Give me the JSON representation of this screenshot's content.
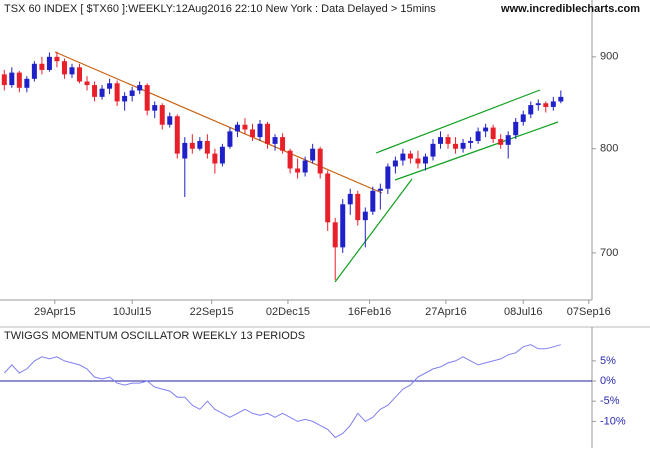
{
  "chart_data": [
    {
      "type": "candlestick",
      "title": "TSX 60 INDEX [ $TX60 ]:WEEKLY:12Aug2016 22:10 New York : Data Delayed > 15mins",
      "source": "www.incrediblecharts.com",
      "x": [
        "2015-03-13",
        "2015-03-20",
        "2015-03-27",
        "2015-04-03",
        "2015-04-10",
        "2015-04-17",
        "2015-04-24",
        "2015-05-01",
        "2015-05-08",
        "2015-05-15",
        "2015-05-22",
        "2015-05-29",
        "2015-06-05",
        "2015-06-12",
        "2015-06-19",
        "2015-06-26",
        "2015-07-03",
        "2015-07-10",
        "2015-07-17",
        "2015-07-24",
        "2015-07-31",
        "2015-08-07",
        "2015-08-14",
        "2015-08-21",
        "2015-08-28",
        "2015-09-04",
        "2015-09-11",
        "2015-09-18",
        "2015-09-25",
        "2015-10-02",
        "2015-10-09",
        "2015-10-16",
        "2015-10-23",
        "2015-10-30",
        "2015-11-06",
        "2015-11-13",
        "2015-11-20",
        "2015-11-27",
        "2015-12-04",
        "2015-12-11",
        "2015-12-18",
        "2015-12-25",
        "2016-01-01",
        "2016-01-08",
        "2016-01-15",
        "2016-01-22",
        "2016-01-29",
        "2016-02-05",
        "2016-02-12",
        "2016-02-19",
        "2016-02-26",
        "2016-03-04",
        "2016-03-11",
        "2016-03-18",
        "2016-03-25",
        "2016-04-01",
        "2016-04-08",
        "2016-04-15",
        "2016-04-22",
        "2016-04-29",
        "2016-05-06",
        "2016-05-13",
        "2016-05-20",
        "2016-05-27",
        "2016-06-03",
        "2016-06-10",
        "2016-06-17",
        "2016-06-24",
        "2016-07-01",
        "2016-07-08",
        "2016-07-15",
        "2016-07-22",
        "2016-07-29",
        "2016-08-05",
        "2016-08-12"
      ],
      "open": [
        880,
        868,
        882,
        865,
        875,
        892,
        885,
        900,
        895,
        880,
        888,
        872,
        868,
        855,
        864,
        870,
        850,
        856,
        862,
        868,
        840,
        846,
        825,
        834,
        790,
        806,
        800,
        808,
        795,
        785,
        802,
        818,
        825,
        820,
        812,
        826,
        805,
        812,
        798,
        780,
        776,
        788,
        800,
        775,
        728,
        705,
        745,
        755,
        730,
        738,
        758,
        760,
        782,
        788,
        795,
        790,
        785,
        792,
        805,
        812,
        805,
        800,
        806,
        808,
        818,
        822,
        810,
        804,
        814,
        828,
        836,
        846,
        848,
        844,
        850
      ],
      "high": [
        885,
        888,
        884,
        878,
        895,
        900,
        905,
        906,
        898,
        892,
        892,
        878,
        872,
        868,
        875,
        873,
        860,
        866,
        872,
        870,
        850,
        848,
        838,
        836,
        812,
        815,
        812,
        815,
        800,
        805,
        822,
        828,
        832,
        826,
        830,
        828,
        815,
        816,
        800,
        790,
        792,
        805,
        802,
        778,
        732,
        750,
        760,
        758,
        742,
        762,
        765,
        785,
        792,
        800,
        798,
        798,
        795,
        810,
        818,
        815,
        812,
        810,
        812,
        822,
        826,
        825,
        815,
        818,
        832,
        840,
        850,
        852,
        850,
        855,
        862
      ],
      "low": [
        862,
        865,
        860,
        860,
        872,
        880,
        883,
        888,
        875,
        876,
        870,
        862,
        850,
        852,
        858,
        845,
        840,
        850,
        858,
        835,
        832,
        820,
        822,
        790,
        752,
        795,
        798,
        790,
        775,
        782,
        800,
        812,
        815,
        808,
        808,
        800,
        798,
        795,
        775,
        770,
        772,
        785,
        770,
        720,
        676,
        700,
        735,
        725,
        705,
        735,
        740,
        755,
        775,
        783,
        785,
        780,
        778,
        788,
        800,
        800,
        795,
        796,
        800,
        805,
        812,
        806,
        800,
        790,
        810,
        824,
        832,
        840,
        838,
        840,
        848
      ],
      "close": [
        868,
        882,
        865,
        875,
        892,
        885,
        900,
        895,
        880,
        888,
        872,
        868,
        855,
        864,
        870,
        850,
        856,
        862,
        868,
        840,
        846,
        825,
        834,
        795,
        806,
        800,
        808,
        795,
        785,
        802,
        818,
        825,
        820,
        812,
        826,
        805,
        812,
        798,
        780,
        776,
        788,
        800,
        775,
        728,
        705,
        745,
        755,
        730,
        738,
        758,
        760,
        782,
        788,
        795,
        790,
        785,
        792,
        805,
        812,
        805,
        800,
        806,
        808,
        818,
        822,
        810,
        804,
        814,
        828,
        836,
        846,
        848,
        844,
        850,
        855
      ],
      "up_color": "#2020c8",
      "down_color": "#e8202a",
      "log_scale": true,
      "ylim": [
        659,
        968
      ],
      "yticks": [
        700,
        800,
        900
      ],
      "xlim": [
        "2015-03-09",
        "2016-09-10"
      ],
      "xticks": [
        {
          "value": "2015-04-29",
          "label": "29Apr15"
        },
        {
          "value": "2015-07-10",
          "label": "10Jul15"
        },
        {
          "value": "2015-09-22",
          "label": "22Sep15"
        },
        {
          "value": "2015-12-02",
          "label": "02Dec15"
        },
        {
          "value": "2016-02-16",
          "label": "16Feb16"
        },
        {
          "value": "2016-04-27",
          "label": "27Apr16"
        },
        {
          "value": "2016-07-08",
          "label": "08Jul16"
        },
        {
          "value": "2016-09-07",
          "label": "07Sep16"
        }
      ]
    },
    {
      "type": "line",
      "title": "TWIGGS MOMENTUM OSCILLATOR WEEKLY 13 PERIODS",
      "x": [
        "2015-03-13",
        "2015-03-20",
        "2015-03-27",
        "2015-04-03",
        "2015-04-10",
        "2015-04-17",
        "2015-04-24",
        "2015-05-01",
        "2015-05-08",
        "2015-05-15",
        "2015-05-22",
        "2015-05-29",
        "2015-06-05",
        "2015-06-12",
        "2015-06-19",
        "2015-06-26",
        "2015-07-03",
        "2015-07-10",
        "2015-07-17",
        "2015-07-24",
        "2015-07-31",
        "2015-08-07",
        "2015-08-14",
        "2015-08-21",
        "2015-08-28",
        "2015-09-04",
        "2015-09-11",
        "2015-09-18",
        "2015-09-25",
        "2015-10-02",
        "2015-10-09",
        "2015-10-16",
        "2015-10-23",
        "2015-10-30",
        "2015-11-06",
        "2015-11-13",
        "2015-11-20",
        "2015-11-27",
        "2015-12-04",
        "2015-12-11",
        "2015-12-18",
        "2015-12-25",
        "2016-01-01",
        "2016-01-08",
        "2016-01-15",
        "2016-01-22",
        "2016-01-29",
        "2016-02-05",
        "2016-02-12",
        "2016-02-19",
        "2016-02-26",
        "2016-03-04",
        "2016-03-11",
        "2016-03-18",
        "2016-03-25",
        "2016-04-01",
        "2016-04-08",
        "2016-04-15",
        "2016-04-22",
        "2016-04-29",
        "2016-05-06",
        "2016-05-13",
        "2016-05-20",
        "2016-05-27",
        "2016-06-03",
        "2016-06-10",
        "2016-06-17",
        "2016-06-24",
        "2016-07-01",
        "2016-07-08",
        "2016-07-15",
        "2016-07-22",
        "2016-07-29",
        "2016-08-05",
        "2016-08-12"
      ],
      "series": [
        {
          "color": "#8080f0",
          "values": [
            2,
            4,
            2,
            3,
            5,
            6,
            5.5,
            6,
            5,
            4.5,
            4,
            3,
            1,
            0.5,
            1,
            -0.5,
            -1,
            -0.5,
            -0.5,
            0,
            -1.5,
            -2,
            -2.5,
            -4,
            -4,
            -6,
            -7,
            -5,
            -7,
            -8,
            -9,
            -8,
            -7,
            -8,
            -8.5,
            -8,
            -9,
            -8,
            -9,
            -10,
            -9.5,
            -10,
            -11,
            -12,
            -14,
            -13,
            -11,
            -8,
            -10,
            -9,
            -7,
            -6,
            -4,
            -2,
            -1,
            1,
            2,
            3,
            3.5,
            4.5,
            5,
            6,
            5,
            4,
            4.5,
            5,
            5.5,
            6.5,
            7,
            8.5,
            9,
            8,
            8,
            8.5,
            9
          ]
        }
      ],
      "zero_line_color": "#2020a0",
      "ylim": [
        -16.6,
        13.4
      ],
      "yticks": [
        {
          "value": 5,
          "label": "5%"
        },
        {
          "value": 0,
          "label": "0%"
        },
        {
          "value": -5,
          "label": "-5%"
        },
        {
          "value": -10,
          "label": "-10%"
        }
      ],
      "xlim": [
        "2015-03-09",
        "2016-09-10"
      ]
    }
  ]
}
